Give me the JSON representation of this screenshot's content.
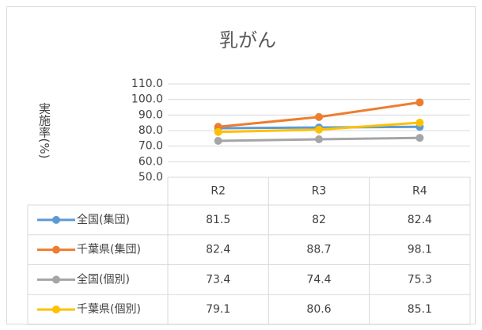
{
  "chart_data": {
    "type": "line",
    "title": "乳がん",
    "y_label": "実施率(%)",
    "categories": [
      "R2",
      "R3",
      "R4"
    ],
    "series": [
      {
        "name": "全国(集団)",
        "color": "#5b9bd5",
        "values": [
          81.5,
          82,
          82.4
        ]
      },
      {
        "name": "千葉県(集団)",
        "color": "#ed7d31",
        "values": [
          82.4,
          88.7,
          98.1
        ]
      },
      {
        "name": "全国(個別)",
        "color": "#a5a5a5",
        "values": [
          73.4,
          74.4,
          75.3
        ]
      },
      {
        "name": "千葉県(個別)",
        "color": "#ffc000",
        "values": [
          79.1,
          80.6,
          85.1
        ]
      }
    ],
    "ylim": [
      50,
      110
    ],
    "yticks": [
      {
        "value": 50,
        "label": "50.0"
      },
      {
        "value": 60,
        "label": "60.0"
      },
      {
        "value": 70,
        "label": "70.0"
      },
      {
        "value": 80,
        "label": "80.0"
      },
      {
        "value": 90,
        "label": "90.0"
      },
      {
        "value": 100,
        "label": "100.0"
      },
      {
        "value": 110,
        "label": "110.0"
      }
    ],
    "grid": true
  }
}
